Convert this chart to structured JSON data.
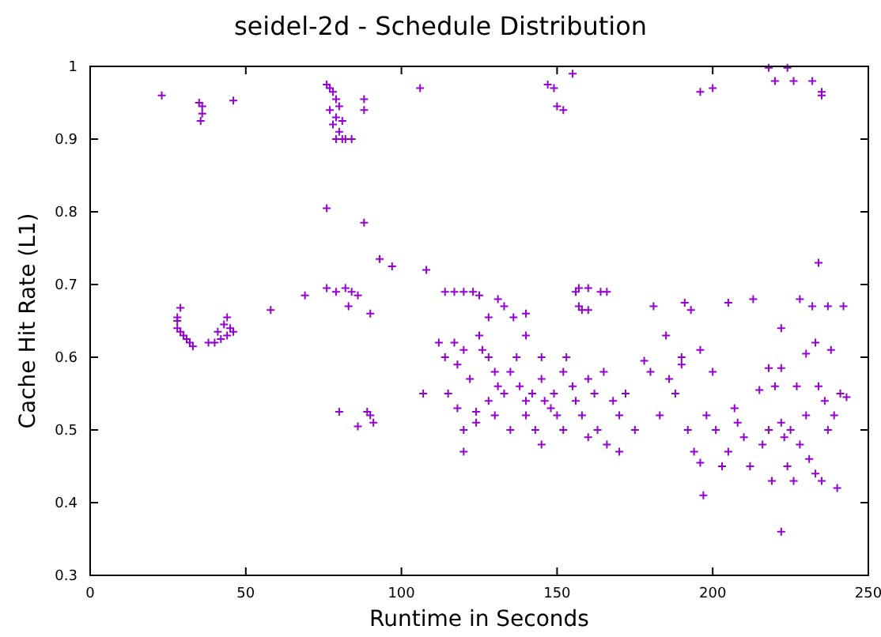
{
  "chart_data": {
    "type": "scatter",
    "title": "seidel-2d - Schedule Distribution",
    "xlabel": "Runtime in Seconds",
    "ylabel": "Cache Hit Rate (L1)",
    "xlim": [
      0,
      250
    ],
    "ylim": [
      0.3,
      1
    ],
    "xticks": [
      0,
      50,
      100,
      150,
      200,
      250
    ],
    "yticks": [
      0.3,
      0.4,
      0.5,
      0.6,
      0.7,
      0.8,
      0.9,
      1
    ],
    "grid": false,
    "marker": "cross",
    "series": [
      {
        "color": "#9400d3",
        "x": [
          23,
          35,
          36,
          36,
          35.5,
          46,
          76,
          77,
          78,
          79,
          80,
          77,
          79,
          78,
          81,
          80,
          79,
          82,
          84,
          81,
          88,
          88,
          106,
          147,
          149,
          150,
          152,
          155,
          196,
          200,
          218,
          220,
          224,
          226,
          232,
          235,
          235,
          76,
          88,
          93,
          97,
          108,
          76,
          79,
          82,
          84,
          86,
          69,
          58,
          83,
          90,
          114,
          117,
          120,
          123,
          125,
          131,
          133,
          128,
          136,
          140,
          156,
          157,
          160,
          164,
          166,
          157,
          158,
          160,
          181,
          191,
          193,
          205,
          213,
          228,
          232,
          237,
          242,
          222,
          234,
          28,
          28,
          29,
          30,
          31,
          32,
          33,
          28,
          29,
          38,
          40,
          42,
          44,
          45,
          43,
          44,
          46,
          41,
          80,
          86,
          89,
          90,
          91,
          107,
          112,
          114,
          117,
          118,
          120,
          122,
          115,
          118,
          120,
          125,
          126,
          128,
          130,
          131,
          133,
          128,
          124,
          130,
          135,
          137,
          138,
          140,
          140,
          142,
          143,
          145,
          146,
          148,
          149,
          150,
          152,
          153,
          155,
          156,
          158,
          160,
          162,
          163,
          165,
          168,
          170,
          172,
          175,
          178,
          180,
          120,
          124,
          135,
          145,
          152,
          160,
          166,
          170,
          140,
          145,
          183,
          186,
          188,
          190,
          192,
          194,
          196,
          197,
          198,
          200,
          201,
          203,
          205,
          207,
          208,
          210,
          212,
          215,
          216,
          218,
          219,
          220,
          222,
          222,
          223,
          224,
          225,
          226,
          227,
          228,
          230,
          231,
          233,
          234,
          235,
          236,
          237,
          239,
          240,
          241,
          243,
          218,
          222,
          230,
          233,
          238,
          190,
          185,
          196
        ],
        "values": [
          0.96,
          0.95,
          0.945,
          0.935,
          0.925,
          0.953,
          0.975,
          0.97,
          0.965,
          0.955,
          0.945,
          0.94,
          0.93,
          0.92,
          0.925,
          0.91,
          0.9,
          0.9,
          0.9,
          0.9,
          0.955,
          0.94,
          0.97,
          0.975,
          0.97,
          0.945,
          0.94,
          0.99,
          0.965,
          0.97,
          0.998,
          0.98,
          0.998,
          0.98,
          0.98,
          0.96,
          0.965,
          0.805,
          0.785,
          0.735,
          0.725,
          0.72,
          0.695,
          0.69,
          0.695,
          0.69,
          0.685,
          0.685,
          0.665,
          0.67,
          0.66,
          0.69,
          0.69,
          0.69,
          0.69,
          0.685,
          0.68,
          0.67,
          0.655,
          0.655,
          0.66,
          0.69,
          0.695,
          0.695,
          0.69,
          0.69,
          0.67,
          0.665,
          0.665,
          0.67,
          0.675,
          0.665,
          0.675,
          0.68,
          0.68,
          0.67,
          0.67,
          0.67,
          0.64,
          0.73,
          0.65,
          0.64,
          0.635,
          0.63,
          0.625,
          0.62,
          0.615,
          0.655,
          0.668,
          0.62,
          0.62,
          0.625,
          0.63,
          0.64,
          0.645,
          0.655,
          0.635,
          0.635,
          0.525,
          0.505,
          0.525,
          0.52,
          0.51,
          0.55,
          0.62,
          0.6,
          0.62,
          0.59,
          0.61,
          0.57,
          0.55,
          0.53,
          0.5,
          0.63,
          0.61,
          0.6,
          0.58,
          0.56,
          0.55,
          0.54,
          0.525,
          0.52,
          0.58,
          0.6,
          0.56,
          0.54,
          0.52,
          0.55,
          0.5,
          0.57,
          0.54,
          0.53,
          0.55,
          0.52,
          0.58,
          0.6,
          0.56,
          0.54,
          0.52,
          0.57,
          0.55,
          0.5,
          0.58,
          0.54,
          0.52,
          0.55,
          0.5,
          0.595,
          0.58,
          0.47,
          0.51,
          0.5,
          0.48,
          0.5,
          0.49,
          0.48,
          0.47,
          0.63,
          0.6,
          0.52,
          0.57,
          0.55,
          0.6,
          0.5,
          0.47,
          0.455,
          0.41,
          0.52,
          0.58,
          0.5,
          0.45,
          0.47,
          0.53,
          0.51,
          0.49,
          0.45,
          0.555,
          0.48,
          0.5,
          0.43,
          0.56,
          0.51,
          0.36,
          0.49,
          0.45,
          0.5,
          0.43,
          0.56,
          0.48,
          0.52,
          0.46,
          0.44,
          0.56,
          0.43,
          0.54,
          0.5,
          0.52,
          0.42,
          0.55,
          0.545,
          0.585,
          0.585,
          0.605,
          0.62,
          0.61,
          0.59,
          0.63,
          0.61
        ]
      }
    ]
  }
}
